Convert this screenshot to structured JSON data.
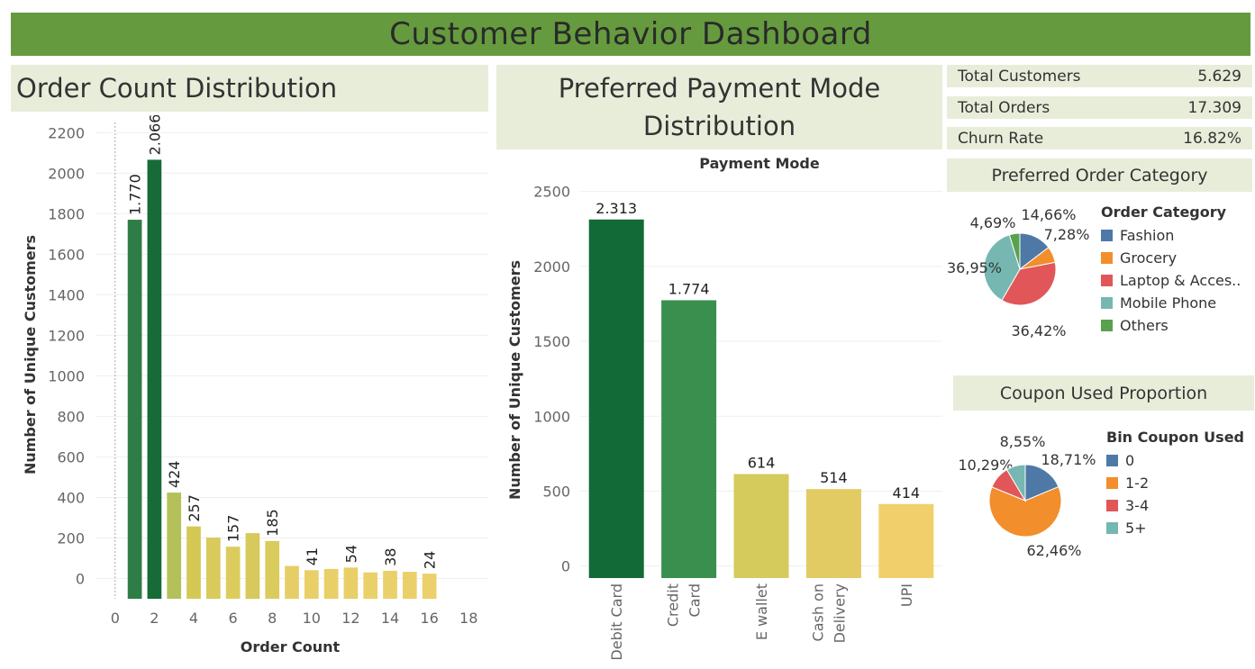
{
  "dashboard": {
    "title": "Customer Behavior Dashboard"
  },
  "order_panel": {
    "title": "Order Count Distribution"
  },
  "payment_panel": {
    "title": "Preferred Payment Mode Distribution"
  },
  "kpis": [
    {
      "label": "Total Customers",
      "value": "5.629"
    },
    {
      "label": "Total Orders",
      "value": "17.309"
    },
    {
      "label": "Churn Rate",
      "value": "16.82%"
    }
  ],
  "category_panel": {
    "title": "Preferred Order Category"
  },
  "coupon_panel": {
    "title": "Coupon Used Proportion"
  },
  "chart_data": [
    {
      "type": "bar",
      "title": "Order Count Distribution",
      "xlabel": "Order Count",
      "ylabel": "Number of Unique Customers",
      "xlim": [
        -1,
        19
      ],
      "ylim": [
        -100,
        2250
      ],
      "x_ticks": [
        0,
        2,
        4,
        6,
        8,
        10,
        12,
        14,
        16,
        18
      ],
      "y_ticks": [
        0,
        200,
        400,
        600,
        800,
        1000,
        1200,
        1400,
        1600,
        1800,
        2000,
        2200
      ],
      "bars": [
        {
          "x": 1,
          "value": 1770,
          "label": "1.770",
          "color": "#2e7d46"
        },
        {
          "x": 2,
          "value": 2066,
          "label": "2.066",
          "color": "#176b37"
        },
        {
          "x": 3,
          "value": 424,
          "label": "424",
          "color": "#b4c15a"
        },
        {
          "x": 4,
          "value": 257,
          "label": "257",
          "color": "#d4c855"
        },
        {
          "x": 5,
          "value": 202,
          "label": "",
          "color": "#d9ca5c"
        },
        {
          "x": 6,
          "value": 157,
          "label": "157",
          "color": "#dccc5e"
        },
        {
          "x": 7,
          "value": 224,
          "label": "",
          "color": "#d7c95b"
        },
        {
          "x": 8,
          "value": 185,
          "label": "185",
          "color": "#dacb5d"
        },
        {
          "x": 9,
          "value": 62,
          "label": "",
          "color": "#e6ce66"
        },
        {
          "x": 10,
          "value": 41,
          "label": "41",
          "color": "#e9cf68"
        },
        {
          "x": 11,
          "value": 47,
          "label": "",
          "color": "#e8cf67"
        },
        {
          "x": 12,
          "value": 54,
          "label": "54",
          "color": "#e8cf67"
        },
        {
          "x": 13,
          "value": 30,
          "label": "",
          "color": "#ead06a"
        },
        {
          "x": 14,
          "value": 38,
          "label": "38",
          "color": "#ead06a"
        },
        {
          "x": 15,
          "value": 33,
          "label": "",
          "color": "#ead06a"
        },
        {
          "x": 16,
          "value": 24,
          "label": "24",
          "color": "#ecd06b"
        }
      ]
    },
    {
      "type": "bar",
      "title": "Preferred Payment Mode Distribution",
      "header": "Payment Mode",
      "ylabel": "Number of Unique Customers",
      "ylim": [
        -80,
        2600
      ],
      "y_ticks": [
        0,
        500,
        1000,
        1500,
        2000,
        2500
      ],
      "categories": [
        "Debit Card",
        "Credit Card",
        "E wallet",
        "Cash on Delivery",
        "UPI"
      ],
      "category_lines": [
        [
          "Debit Card"
        ],
        [
          "Credit",
          "Card"
        ],
        [
          "E wallet"
        ],
        [
          "Cash on",
          "Delivery"
        ],
        [
          "UPI"
        ]
      ],
      "values": [
        2313,
        1774,
        614,
        514,
        414
      ],
      "labels": [
        "2.313",
        "1.774",
        "614",
        "514",
        "414"
      ],
      "colors": [
        "#126b37",
        "#3b8f4e",
        "#d5cb5c",
        "#e2cb63",
        "#f1d06b"
      ]
    },
    {
      "type": "pie",
      "title": "Preferred Order Category",
      "legend_title": "Order Category",
      "legend_position": "right",
      "slices": [
        {
          "name": "Fashion",
          "value": 14.66,
          "label": "14,66%",
          "color": "#4e79a7"
        },
        {
          "name": "Grocery",
          "value": 7.28,
          "label": "7,28%",
          "color": "#f28e2b"
        },
        {
          "name": "Laptop & Acces..",
          "value": 36.42,
          "label": "36,42%",
          "color": "#e15759"
        },
        {
          "name": "Mobile Phone",
          "value": 36.95,
          "label": "36,95%",
          "color": "#76b7b2"
        },
        {
          "name": "Others",
          "value": 4.69,
          "label": "4,69%",
          "color": "#59a14f"
        }
      ]
    },
    {
      "type": "pie",
      "title": "Coupon Used Proportion",
      "legend_title": "Bin Coupon Used",
      "legend_position": "right",
      "slices": [
        {
          "name": "0",
          "value": 18.71,
          "label": "18,71%",
          "color": "#4e79a7"
        },
        {
          "name": "1-2",
          "value": 62.46,
          "label": "62,46%",
          "color": "#f28e2b"
        },
        {
          "name": "3-4",
          "value": 10.29,
          "label": "10,29%",
          "color": "#e15759"
        },
        {
          "name": "5+",
          "value": 8.55,
          "label": "8,55%",
          "color": "#76b7b2"
        }
      ]
    }
  ]
}
